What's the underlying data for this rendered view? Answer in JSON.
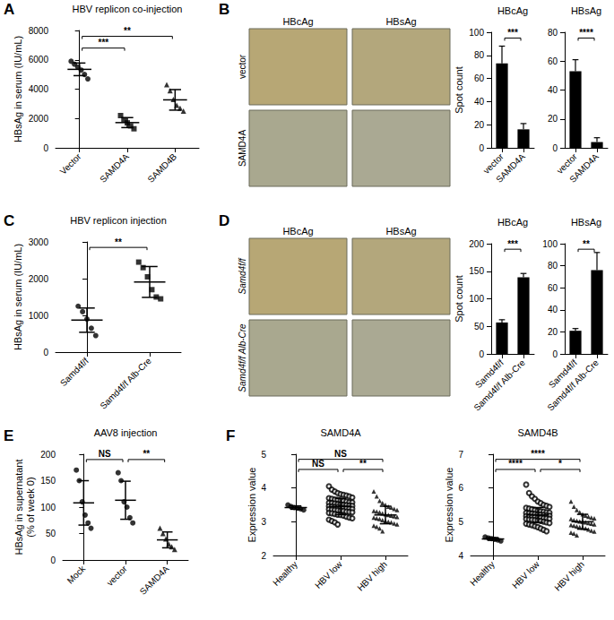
{
  "chart_data": [
    {
      "panel_label": "A",
      "type": "scatter",
      "title": "HBV replicon co-injection",
      "ylabel": "HBsAg in serum (IU/mL)",
      "categories": [
        "Vector",
        "SAMD4A",
        "SAMD4B"
      ],
      "points": [
        [
          5900,
          5700,
          5500,
          5300,
          5000,
          4700
        ],
        [
          2200,
          1900,
          1700,
          1500,
          1300
        ],
        [
          4300,
          3900,
          3300,
          2900,
          2700,
          2500
        ]
      ],
      "means": [
        5350,
        1720,
        3270
      ],
      "errors": [
        430,
        340,
        700
      ],
      "markers": [
        "circle",
        "square",
        "triangle"
      ],
      "color": "#000000",
      "ylim": [
        0,
        8000
      ],
      "yticks": [
        0,
        2000,
        4000,
        6000,
        8000
      ],
      "grid": false,
      "comparisons": [
        {
          "between": [
            0,
            1
          ],
          "label": "***"
        },
        {
          "between": [
            0,
            2
          ],
          "label": "**"
        }
      ]
    },
    {
      "panel_label": "B",
      "type": "image_grid",
      "columns": [
        "HBcAg",
        "HBsAg"
      ],
      "rows": [
        "vector",
        "SAMD4A"
      ]
    },
    {
      "type": "bar",
      "title": "HBcAg",
      "ylabel": "Spot count",
      "categories": [
        "vector",
        "SAMD4A"
      ],
      "values": [
        73,
        16
      ],
      "errors": [
        15,
        5
      ],
      "color": "#000000",
      "ylim": [
        0,
        100
      ],
      "yticks": [
        0,
        20,
        40,
        60,
        80,
        100
      ],
      "grid": false,
      "comparisons": [
        {
          "between": [
            0,
            1
          ],
          "label": "***"
        }
      ]
    },
    {
      "type": "bar",
      "title": "HBsAg",
      "categories": [
        "vector",
        "SAMD4A"
      ],
      "values": [
        53,
        4
      ],
      "errors": [
        8,
        3
      ],
      "color": "#000000",
      "ylim": [
        0,
        80
      ],
      "yticks": [
        0,
        20,
        40,
        60,
        80
      ],
      "grid": false,
      "comparisons": [
        {
          "between": [
            0,
            1
          ],
          "label": "****"
        }
      ]
    },
    {
      "panel_label": "C",
      "type": "scatter",
      "title": "HBV replicon injection",
      "ylabel": "HBsAg in serum (IU/mL)",
      "categories": [
        "Samd4f/f",
        "Samd4f/f Alb-Cre"
      ],
      "points": [
        [
          1250,
          1100,
          900,
          650,
          450
        ],
        [
          2450,
          2300,
          2050,
          1700,
          1500,
          1450
        ]
      ],
      "means": [
        870,
        1910
      ],
      "errors": [
        330,
        420
      ],
      "markers": [
        "circle",
        "square"
      ],
      "color": "#000000",
      "ylim": [
        0,
        3000
      ],
      "yticks": [
        0,
        1000,
        2000,
        3000
      ],
      "grid": false,
      "comparisons": [
        {
          "between": [
            0,
            1
          ],
          "label": "**"
        }
      ]
    },
    {
      "panel_label": "D",
      "type": "image_grid",
      "columns": [
        "HBcAg",
        "HBsAg"
      ],
      "rows": [
        "Samd4f/f",
        "Samd4f/f Alb-Cre"
      ]
    },
    {
      "type": "bar",
      "title": "HBcAg",
      "ylabel": "Spot count",
      "categories": [
        "Samd4f/f",
        "Samd4f/f Alb-Cre"
      ],
      "values": [
        57,
        139
      ],
      "errors": [
        5,
        7
      ],
      "color": "#000000",
      "ylim": [
        0,
        200
      ],
      "yticks": [
        0,
        50,
        100,
        150,
        200
      ],
      "grid": false,
      "comparisons": [
        {
          "between": [
            0,
            1
          ],
          "label": "***"
        }
      ]
    },
    {
      "type": "bar",
      "title": "HBsAg",
      "categories": [
        "Samd4f/f",
        "Samd4f/f Alb-Cre"
      ],
      "values": [
        21,
        76
      ],
      "errors": [
        2,
        16
      ],
      "color": "#000000",
      "ylim": [
        0,
        100
      ],
      "yticks": [
        0,
        20,
        40,
        60,
        80,
        100
      ],
      "grid": false,
      "comparisons": [
        {
          "between": [
            0,
            1
          ],
          "label": "**"
        }
      ]
    },
    {
      "panel_label": "E",
      "type": "scatter",
      "title": "AAV8 injection",
      "ylabel": "HBsAg in supernatant\n(% of week 0)",
      "categories": [
        "Mock",
        "vector",
        "SAMD4A"
      ],
      "points": [
        [
          170,
          150,
          110,
          85,
          70,
          60
        ],
        [
          165,
          150,
          110,
          100,
          80,
          70
        ],
        [
          60,
          50,
          40,
          30,
          25,
          20
        ]
      ],
      "means": [
        108,
        113,
        38
      ],
      "errors": [
        42,
        36,
        15
      ],
      "markers": [
        "circle",
        "circle",
        "triangle"
      ],
      "color": "#000000",
      "ylim": [
        0,
        200
      ],
      "yticks": [
        0,
        50,
        100,
        150,
        200
      ],
      "grid": false,
      "comparisons": [
        {
          "between": [
            0,
            1
          ],
          "label": "NS"
        },
        {
          "between": [
            1,
            2
          ],
          "label": "**"
        }
      ]
    },
    {
      "panel_label": "F",
      "type": "scatter",
      "title": "SAMD4A",
      "ylabel": "Expression value",
      "categories": [
        "Healthy",
        "HBV low",
        "HBV high"
      ],
      "points": [
        [
          3.5,
          3.45,
          3.42,
          3.4,
          3.38,
          3.35
        ],
        [
          4.05,
          3.95,
          3.9,
          3.85,
          3.82,
          3.8,
          3.78,
          3.75,
          3.72,
          3.7,
          3.68,
          3.66,
          3.65,
          3.63,
          3.62,
          3.6,
          3.58,
          3.57,
          3.56,
          3.55,
          3.54,
          3.52,
          3.51,
          3.5,
          3.49,
          3.48,
          3.47,
          3.46,
          3.45,
          3.44,
          3.43,
          3.42,
          3.41,
          3.4,
          3.39,
          3.38,
          3.37,
          3.36,
          3.35,
          3.34,
          3.33,
          3.32,
          3.3,
          3.29,
          3.28,
          3.26,
          3.25,
          3.23,
          3.21,
          3.2,
          3.18,
          3.15,
          3.12,
          3.1,
          3.06,
          3.02,
          2.98,
          2.92
        ],
        [
          3.9,
          3.75,
          3.62,
          3.55,
          3.5,
          3.45,
          3.42,
          3.38,
          3.35,
          3.32,
          3.3,
          3.28,
          3.25,
          3.22,
          3.2,
          3.18,
          3.16,
          3.14,
          3.12,
          3.1,
          3.08,
          3.05,
          3.02,
          3.0,
          2.98,
          2.95,
          2.92,
          2.88,
          2.85,
          2.8,
          2.72
        ]
      ],
      "means": [
        3.42,
        3.45,
        3.2
      ],
      "errors": [
        0.05,
        0.24,
        0.26
      ],
      "markers": [
        "circle",
        "open_circle",
        "triangle"
      ],
      "color": "#000000",
      "ylim": [
        2,
        5
      ],
      "yticks": [
        2,
        3,
        4,
        5
      ],
      "grid": false,
      "comparisons": [
        {
          "between": [
            1,
            2
          ],
          "label": "**"
        },
        {
          "between": [
            0,
            1
          ],
          "label": "NS"
        },
        {
          "between": [
            0,
            2
          ],
          "label": "NS"
        }
      ]
    },
    {
      "type": "scatter",
      "title": "SAMD4B",
      "ylabel": "Expression value",
      "categories": [
        "Healthy",
        "HBV low",
        "HBV high"
      ],
      "points": [
        [
          4.55,
          4.52,
          4.5,
          4.48,
          4.46,
          4.43
        ],
        [
          6.1,
          5.85,
          5.75,
          5.68,
          5.6,
          5.55,
          5.5,
          5.47,
          5.44,
          5.41,
          5.39,
          5.37,
          5.35,
          5.33,
          5.31,
          5.3,
          5.28,
          5.27,
          5.26,
          5.25,
          5.24,
          5.23,
          5.22,
          5.21,
          5.2,
          5.19,
          5.18,
          5.17,
          5.16,
          5.15,
          5.14,
          5.13,
          5.12,
          5.11,
          5.1,
          5.09,
          5.08,
          5.07,
          5.06,
          5.05,
          5.04,
          5.02,
          5.0,
          4.98,
          4.96,
          4.94,
          4.92,
          4.9,
          4.87,
          4.84,
          4.8,
          4.76,
          4.72
        ],
        [
          5.6,
          5.45,
          5.35,
          5.28,
          5.22,
          5.18,
          5.15,
          5.12,
          5.1,
          5.08,
          5.05,
          5.03,
          5.01,
          5.0,
          4.98,
          4.96,
          4.94,
          4.92,
          4.9,
          4.88,
          4.86,
          4.84,
          4.82,
          4.8,
          4.77,
          4.74,
          4.71,
          4.68,
          4.65,
          4.6
        ]
      ],
      "means": [
        4.49,
        5.2,
        5.0
      ],
      "errors": [
        0.04,
        0.22,
        0.22
      ],
      "markers": [
        "circle",
        "open_circle",
        "triangle"
      ],
      "color": "#000000",
      "ylim": [
        4,
        7
      ],
      "yticks": [
        4,
        5,
        6,
        7
      ],
      "grid": false,
      "comparisons": [
        {
          "between": [
            1,
            2
          ],
          "label": "*"
        },
        {
          "between": [
            0,
            1
          ],
          "label": "****"
        },
        {
          "between": [
            0,
            2
          ],
          "label": "****"
        }
      ]
    }
  ]
}
